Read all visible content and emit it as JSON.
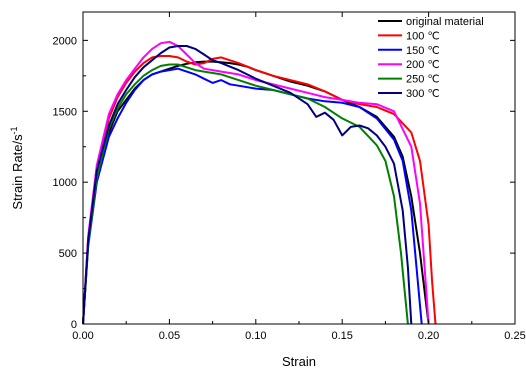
{
  "chart_data": {
    "type": "line",
    "xlabel": "Strain",
    "ylabel": "Strain Rate/s",
    "ylabel_sup": "-1",
    "xlim": [
      0.0,
      0.25
    ],
    "ylim": [
      0,
      2200
    ],
    "xticks": [
      "0.00",
      "0.05",
      "0.10",
      "0.15",
      "0.20",
      "0.25"
    ],
    "yticks": [
      "0",
      "500",
      "1000",
      "1500",
      "2000"
    ],
    "legend_position": "top-right",
    "grid": false,
    "series": [
      {
        "name": "original material",
        "color": "#000000",
        "x": [
          0.0,
          0.003,
          0.008,
          0.015,
          0.02,
          0.025,
          0.03,
          0.035,
          0.04,
          0.045,
          0.05,
          0.055,
          0.06,
          0.065,
          0.07,
          0.075,
          0.08,
          0.085,
          0.09,
          0.095,
          0.1,
          0.11,
          0.12,
          0.13,
          0.14,
          0.15,
          0.16,
          0.17,
          0.18,
          0.185,
          0.19,
          0.195,
          0.198,
          0.2
        ],
        "y": [
          0,
          600,
          1050,
          1350,
          1500,
          1580,
          1660,
          1720,
          1760,
          1780,
          1800,
          1820,
          1835,
          1845,
          1850,
          1850,
          1845,
          1840,
          1830,
          1815,
          1790,
          1750,
          1710,
          1680,
          1640,
          1580,
          1530,
          1460,
          1320,
          1180,
          900,
          500,
          200,
          0
        ]
      },
      {
        "name": "100    ℃",
        "color": "#ff0000",
        "x": [
          0.0,
          0.003,
          0.008,
          0.015,
          0.02,
          0.025,
          0.03,
          0.035,
          0.04,
          0.045,
          0.05,
          0.055,
          0.06,
          0.065,
          0.07,
          0.075,
          0.08,
          0.09,
          0.1,
          0.11,
          0.12,
          0.13,
          0.14,
          0.15,
          0.16,
          0.17,
          0.18,
          0.19,
          0.195,
          0.2,
          0.202,
          0.204
        ],
        "y": [
          0,
          600,
          1100,
          1450,
          1600,
          1700,
          1780,
          1840,
          1880,
          1890,
          1890,
          1880,
          1850,
          1830,
          1840,
          1870,
          1880,
          1840,
          1790,
          1750,
          1720,
          1690,
          1640,
          1580,
          1550,
          1530,
          1480,
          1350,
          1150,
          700,
          300,
          0
        ]
      },
      {
        "name": "150    ℃",
        "color": "#0000ff",
        "x": [
          0.0,
          0.003,
          0.008,
          0.015,
          0.02,
          0.025,
          0.03,
          0.035,
          0.04,
          0.045,
          0.05,
          0.055,
          0.06,
          0.065,
          0.07,
          0.075,
          0.08,
          0.085,
          0.09,
          0.1,
          0.11,
          0.12,
          0.13,
          0.14,
          0.15,
          0.16,
          0.17,
          0.18,
          0.185,
          0.19,
          0.193,
          0.196
        ],
        "y": [
          0,
          550,
          1000,
          1320,
          1450,
          1560,
          1650,
          1720,
          1760,
          1780,
          1790,
          1800,
          1780,
          1760,
          1730,
          1700,
          1720,
          1690,
          1680,
          1660,
          1650,
          1620,
          1590,
          1570,
          1560,
          1530,
          1450,
          1300,
          1150,
          800,
          400,
          0
        ]
      },
      {
        "name": "200    ℃",
        "color": "#ff00ff",
        "x": [
          0.0,
          0.003,
          0.008,
          0.015,
          0.02,
          0.025,
          0.03,
          0.035,
          0.04,
          0.045,
          0.05,
          0.055,
          0.06,
          0.065,
          0.07,
          0.075,
          0.08,
          0.09,
          0.1,
          0.11,
          0.12,
          0.13,
          0.14,
          0.15,
          0.16,
          0.17,
          0.18,
          0.19,
          0.195,
          0.198,
          0.2
        ],
        "y": [
          0,
          620,
          1120,
          1480,
          1620,
          1720,
          1800,
          1880,
          1940,
          1980,
          1990,
          1960,
          1900,
          1840,
          1800,
          1790,
          1780,
          1760,
          1720,
          1690,
          1660,
          1630,
          1600,
          1580,
          1560,
          1550,
          1500,
          1250,
          850,
          350,
          0
        ]
      },
      {
        "name": "250    ℃",
        "color": "#008000",
        "x": [
          0.0,
          0.003,
          0.008,
          0.015,
          0.02,
          0.025,
          0.03,
          0.035,
          0.04,
          0.045,
          0.05,
          0.055,
          0.06,
          0.065,
          0.07,
          0.08,
          0.09,
          0.1,
          0.11,
          0.12,
          0.13,
          0.14,
          0.15,
          0.16,
          0.17,
          0.175,
          0.18,
          0.184,
          0.186,
          0.188
        ],
        "y": [
          0,
          560,
          1030,
          1380,
          1520,
          1620,
          1690,
          1750,
          1790,
          1820,
          1830,
          1830,
          1810,
          1790,
          1780,
          1760,
          1720,
          1680,
          1650,
          1620,
          1590,
          1530,
          1450,
          1390,
          1260,
          1150,
          900,
          500,
          250,
          0
        ]
      },
      {
        "name": "300    ℃",
        "color": "#000080",
        "x": [
          0.0,
          0.003,
          0.008,
          0.015,
          0.02,
          0.025,
          0.03,
          0.035,
          0.04,
          0.045,
          0.05,
          0.055,
          0.06,
          0.065,
          0.07,
          0.075,
          0.08,
          0.09,
          0.1,
          0.11,
          0.12,
          0.13,
          0.135,
          0.14,
          0.145,
          0.15,
          0.155,
          0.16,
          0.165,
          0.17,
          0.175,
          0.18,
          0.185,
          0.188,
          0.19
        ],
        "y": [
          0,
          590,
          1080,
          1400,
          1550,
          1650,
          1740,
          1810,
          1860,
          1910,
          1950,
          1960,
          1960,
          1940,
          1900,
          1860,
          1840,
          1790,
          1730,
          1680,
          1630,
          1550,
          1460,
          1490,
          1440,
          1330,
          1390,
          1400,
          1380,
          1330,
          1250,
          1130,
          800,
          400,
          0
        ]
      }
    ]
  }
}
